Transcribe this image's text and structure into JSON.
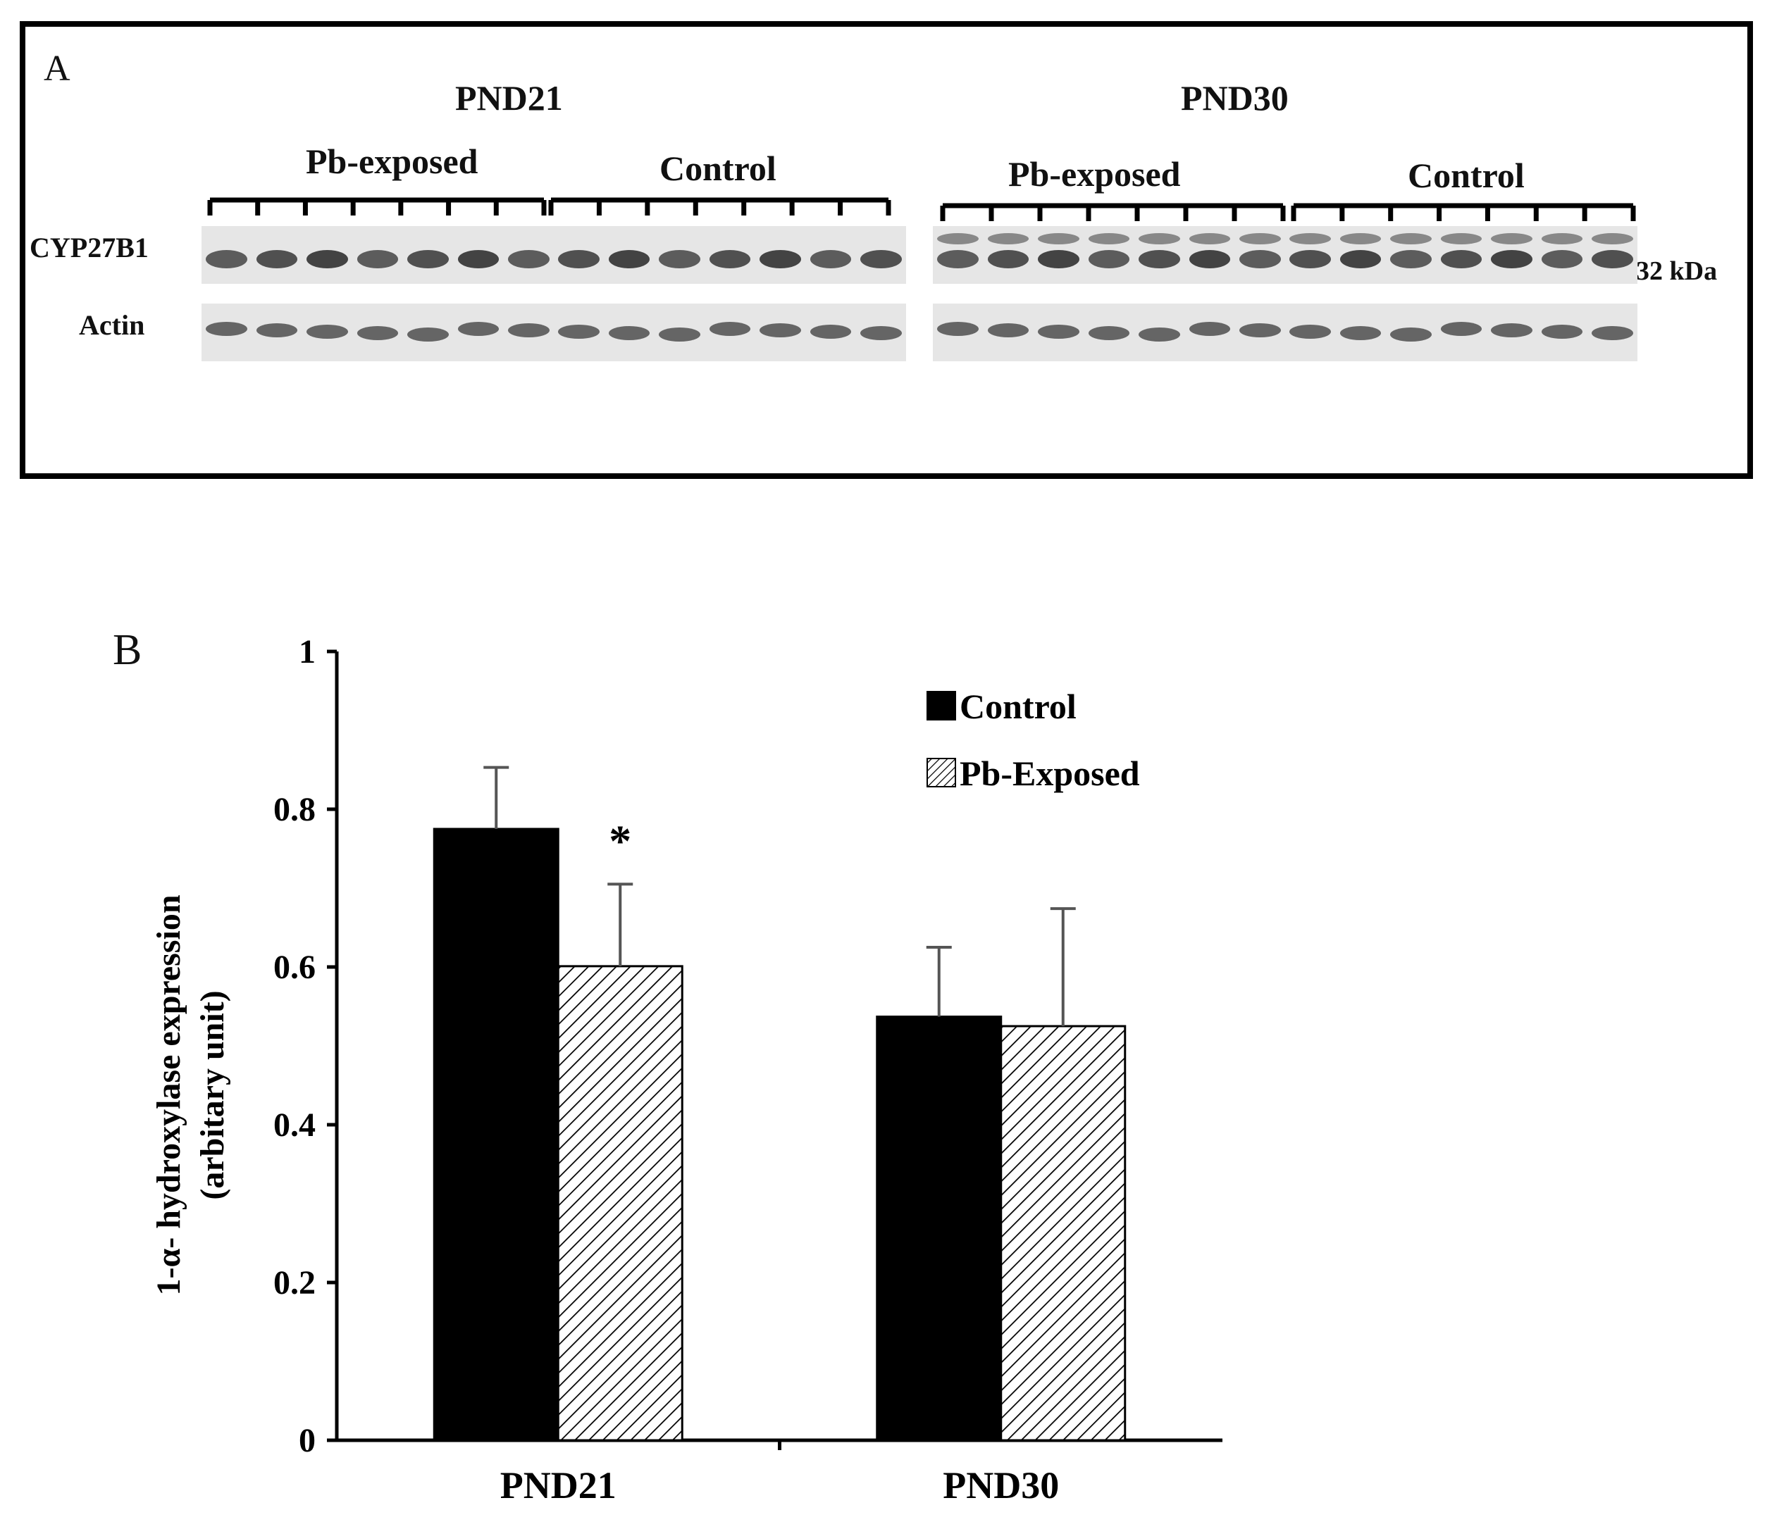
{
  "panel_a": {
    "panel_letter": "A",
    "timepoints": [
      "PND21",
      "PND30"
    ],
    "group_labels": [
      "Pb-exposed",
      "Control"
    ],
    "row_labels": [
      "CYP27B1",
      "Actin"
    ],
    "marker_label": "32 kDa",
    "lanes_per_group": 7,
    "band_color": "#3a3a3a",
    "blot_background": "#e6e6e6"
  },
  "panel_b": {
    "panel_letter": "B",
    "significance_marker": "*"
  },
  "chart_data": {
    "type": "bar",
    "categories": [
      "PND21",
      "PND30"
    ],
    "series": [
      {
        "name": "Control",
        "values": [
          0.775,
          0.537
        ],
        "errors": [
          0.078,
          0.088
        ],
        "fill": "solid",
        "color": "#000000"
      },
      {
        "name": "Pb-Exposed",
        "values": [
          0.601,
          0.525
        ],
        "errors": [
          0.104,
          0.149
        ],
        "fill": "hatched",
        "color": "#ffffff"
      }
    ],
    "title": "",
    "xlabel": "",
    "ylabel_lines": [
      "1-α- hydroxylase expression",
      "(arbitary unit)"
    ],
    "ylim": [
      0,
      1
    ],
    "yticks": [
      "0",
      "0.2",
      "0.4",
      "0.6",
      "0.8",
      "1"
    ],
    "legend_position": "top-right",
    "grid": false
  }
}
